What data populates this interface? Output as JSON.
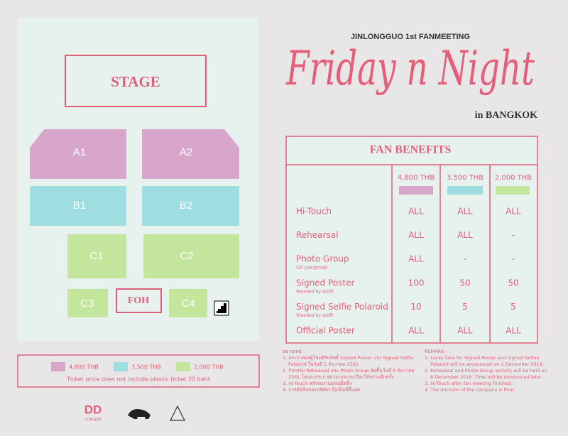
{
  "header": {
    "event": "JINLONGGUO 1st FANMEETING",
    "title": "Friday n Night",
    "location": "in BANGKOK"
  },
  "seating": {
    "stage": "STAGE",
    "sections": [
      "A1",
      "A2",
      "B1",
      "B2",
      "C1",
      "C2",
      "C3",
      "C4"
    ],
    "foh": "FOH"
  },
  "legend": {
    "items": [
      {
        "label": "4,800 THB",
        "color": "#d9a6cb"
      },
      {
        "label": "3,500 THB",
        "color": "#9edde0"
      },
      {
        "label": "2,000 THB",
        "color": "#c4e59c"
      }
    ],
    "note": "Ticket price does not include plastic ticket 20 baht"
  },
  "table": {
    "title": "FAN BENEFITS",
    "columns": [
      {
        "label": "4,800 THB",
        "color": "#d9a6cb"
      },
      {
        "label": "3,500 THB",
        "color": "#9edde0"
      },
      {
        "label": "2,000 THB",
        "color": "#c4e59c"
      }
    ],
    "rows": [
      {
        "label": "Hi-Touch",
        "cells": [
          "ALL",
          "ALL",
          "ALL"
        ]
      },
      {
        "label": "Rehearsal",
        "cells": [
          "ALL",
          "ALL",
          "-"
        ]
      },
      {
        "label": "Photo Group",
        "note": "(20 pax/group)",
        "cells": [
          "ALL",
          "-",
          "-"
        ]
      },
      {
        "label": "Signed Poster",
        "note": "(Handed by staff)",
        "cells": [
          100,
          50,
          50
        ]
      },
      {
        "label": "Signed Selfie Polaroid",
        "note": "(Handed by staff)",
        "cells": [
          10,
          5,
          5
        ]
      },
      {
        "label": "Official Poster",
        "cells": [
          "ALL",
          "ALL",
          "ALL"
        ]
      }
    ]
  },
  "remarks_th": {
    "title": "หมายเหตุ :",
    "items": [
      "1. ประกาศผลผู้โชคดีรับสิทธิ์ Signed Poster และ Signed Selfie Polaroid ในวันที่ 1 ธันวาคม 2561",
      "2. กิจกรรม Rehearsal และ Photo Group จัดขึ้นวันที่ 8 ธันวาคม 2561 โดยจะประกาศเวลาและระเบียบให้ทราบอีกครั้ง",
      "3. Hi-Touch หลังจบงานแฟนมีตติ้ง",
      "4. การตัดสินของบริษัทฯ ถือเป็นที่สิ้นสุด"
    ]
  },
  "remarks_en": {
    "title": "REMARK :",
    "items": [
      "1. Lucky fans for Signed Poster and Signed Selfoe Polaroid will be announced on 1 December 2018.",
      "2. Rehearsal and Photo Group activity will be held on 8 December 2018. Time will be announced later.",
      "3. Hi-Touch after fan meeting finished.",
      "4. The decision of the company is final."
    ]
  },
  "logos": {
    "brand": "DD",
    "brand_sub": "CONCERT"
  }
}
